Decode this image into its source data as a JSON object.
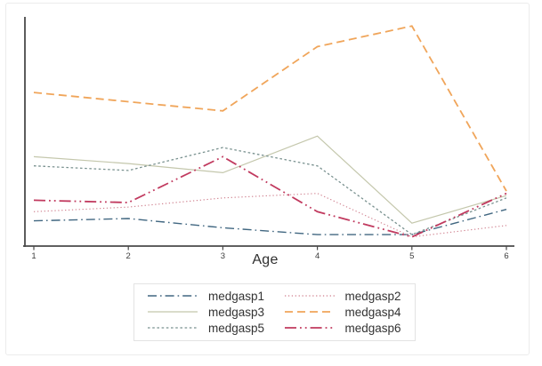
{
  "figure": {
    "background": "#ffffff",
    "border_color": "#ececec"
  },
  "axis": {
    "color": "#4a4a4a",
    "tick_label_color": "#3d3d3d"
  },
  "legend": {
    "border_color": "#e3e3e3",
    "background": "#ffffff",
    "text_color": "#333333",
    "position": "bottom-center",
    "columns": 2
  },
  "chart_data": {
    "type": "line",
    "title": "",
    "xlabel": "Age",
    "ylabel": "",
    "x": [
      1,
      2,
      3,
      4,
      5,
      6
    ],
    "x_tick_labels": [
      "1",
      "2",
      "3",
      "4",
      "5",
      "6"
    ],
    "ylim": [
      0,
      1
    ],
    "y_axis_ticks": "none (no y tick marks or value labels shown)",
    "grid": false,
    "legend_position": "bottom",
    "series": [
      {
        "name": "medgasp1",
        "color": "#416781",
        "pattern": "dash-dot",
        "width": 1.4,
        "values": [
          0.11,
          0.12,
          0.08,
          0.05,
          0.05,
          0.16
        ]
      },
      {
        "name": "medgasp2",
        "color": "#cf7f8d",
        "pattern": "dot",
        "width": 1.1,
        "values": [
          0.15,
          0.17,
          0.21,
          0.23,
          0.04,
          0.09
        ]
      },
      {
        "name": "medgasp3",
        "color": "#c4c7ac",
        "pattern": "solid",
        "width": 1.2,
        "values": [
          0.39,
          0.36,
          0.32,
          0.48,
          0.1,
          0.22
        ]
      },
      {
        "name": "medgasp4",
        "color": "#f0a55a",
        "pattern": "dash",
        "width": 1.8,
        "values": [
          0.67,
          0.63,
          0.59,
          0.87,
          0.96,
          0.24
        ]
      },
      {
        "name": "medgasp5",
        "color": "#79918f",
        "pattern": "short-dash",
        "width": 1.3,
        "values": [
          0.35,
          0.33,
          0.43,
          0.35,
          0.05,
          0.21
        ]
      },
      {
        "name": "medgasp6",
        "color": "#c13a5f",
        "pattern": "dash-dot-dot",
        "width": 1.8,
        "values": [
          0.2,
          0.19,
          0.39,
          0.15,
          0.04,
          0.23
        ]
      }
    ]
  }
}
